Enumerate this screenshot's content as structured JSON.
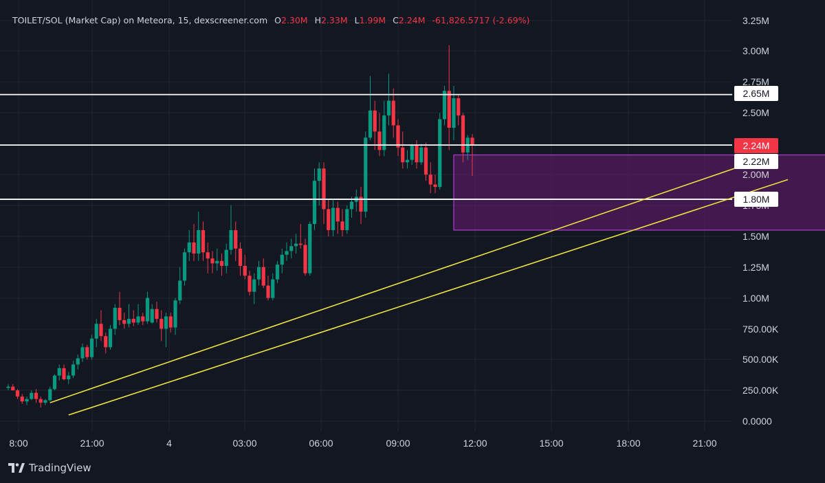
{
  "header": {
    "title": "TOILET/SOL (Market Cap) on Meteora, 15, dexscreener.com",
    "o_label": "O",
    "o_value": "2.30M",
    "h_label": "H",
    "h_value": "2.33M",
    "l_label": "L",
    "l_value": "1.99M",
    "c_label": "C",
    "c_value": "2.24M",
    "change": "-61,826.5717 (-2.69%)"
  },
  "footer": {
    "brand": "TradingView",
    "logo_icon": "tradingview-logo-icon"
  },
  "colors": {
    "background": "#131722",
    "up": "#089981",
    "down": "#f23645",
    "trendline": "#f0e442",
    "box_fill": "#6a1b6f",
    "box_stroke": "#b23bd6",
    "hline": "#ffffff",
    "axis_text": "#d1d4dc"
  },
  "chart_data": {
    "type": "candlestick",
    "x_tick_labels": [
      "8:00",
      "21:00",
      "4",
      "03:00",
      "06:00",
      "09:00",
      "12:00",
      "15:00",
      "18:00",
      "21:00"
    ],
    "y_tick_labels": [
      "3.25M",
      "3.00M",
      "2.75M",
      "2.50M",
      "2.00M",
      "1.75M",
      "1.50M",
      "1.25M",
      "1.00M",
      "750.00K",
      "500.00K",
      "250.00K",
      "0.0000"
    ],
    "ylim": [
      0,
      3.25
    ],
    "y_unit": "M",
    "price_labels": [
      {
        "label": "2.65M",
        "value": 2.65,
        "style": "white"
      },
      {
        "label": "2.24M",
        "value": 2.24,
        "style": "red"
      },
      {
        "label": "2.22M",
        "value": 2.22,
        "style": "white"
      },
      {
        "label": "1.80M",
        "value": 1.8,
        "style": "white"
      }
    ],
    "horizontal_lines": [
      2.65,
      2.24,
      1.8
    ],
    "rectangle": {
      "t_start": 96,
      "t_end": 177,
      "top": 2.16,
      "bottom": 1.55
    },
    "trendlines": [
      {
        "t1": 9,
        "v1": 0.15,
        "t2": 158,
        "v2": 2.07
      },
      {
        "t1": 13,
        "v1": 0.05,
        "t2": 168,
        "v2": 1.96
      }
    ],
    "candles_ohlc": [
      [
        0.27,
        0.3,
        0.25,
        0.28
      ],
      [
        0.28,
        0.3,
        0.25,
        0.25
      ],
      [
        0.25,
        0.26,
        0.18,
        0.2
      ],
      [
        0.2,
        0.22,
        0.14,
        0.16
      ],
      [
        0.16,
        0.2,
        0.13,
        0.18
      ],
      [
        0.18,
        0.25,
        0.17,
        0.23
      ],
      [
        0.23,
        0.26,
        0.15,
        0.18
      ],
      [
        0.18,
        0.2,
        0.11,
        0.15
      ],
      [
        0.15,
        0.18,
        0.13,
        0.17
      ],
      [
        0.17,
        0.28,
        0.16,
        0.26
      ],
      [
        0.26,
        0.38,
        0.25,
        0.37
      ],
      [
        0.37,
        0.46,
        0.33,
        0.43
      ],
      [
        0.43,
        0.46,
        0.33,
        0.34
      ],
      [
        0.34,
        0.4,
        0.3,
        0.37
      ],
      [
        0.37,
        0.49,
        0.35,
        0.46
      ],
      [
        0.46,
        0.54,
        0.42,
        0.51
      ],
      [
        0.51,
        0.63,
        0.48,
        0.6
      ],
      [
        0.6,
        0.62,
        0.5,
        0.52
      ],
      [
        0.52,
        0.7,
        0.5,
        0.67
      ],
      [
        0.67,
        0.83,
        0.6,
        0.79
      ],
      [
        0.79,
        0.9,
        0.65,
        0.69
      ],
      [
        0.69,
        0.72,
        0.55,
        0.6
      ],
      [
        0.6,
        0.78,
        0.58,
        0.75
      ],
      [
        0.75,
        0.95,
        0.7,
        0.92
      ],
      [
        0.92,
        1.05,
        0.78,
        0.82
      ],
      [
        0.82,
        0.88,
        0.75,
        0.79
      ],
      [
        0.79,
        0.95,
        0.76,
        0.83
      ],
      [
        0.83,
        0.9,
        0.77,
        0.8
      ],
      [
        0.8,
        0.95,
        0.78,
        0.85
      ],
      [
        0.85,
        0.88,
        0.78,
        0.81
      ],
      [
        0.81,
        1.05,
        0.79,
        1.0
      ],
      [
        0.8,
        0.95,
        0.79,
        0.91
      ],
      [
        0.91,
        0.97,
        0.8,
        0.83
      ],
      [
        0.83,
        0.9,
        0.65,
        0.75
      ],
      [
        0.75,
        0.88,
        0.6,
        0.85
      ],
      [
        0.85,
        0.88,
        0.72,
        0.76
      ],
      [
        0.76,
        1.0,
        0.7,
        0.98
      ],
      [
        0.98,
        1.25,
        0.95,
        1.14
      ],
      [
        1.14,
        1.4,
        1.1,
        1.37
      ],
      [
        1.37,
        1.55,
        1.3,
        1.45
      ],
      [
        1.45,
        1.6,
        1.3,
        1.36
      ],
      [
        1.36,
        1.7,
        1.3,
        1.55
      ],
      [
        1.55,
        1.62,
        1.3,
        1.37
      ],
      [
        1.37,
        1.45,
        1.2,
        1.32
      ],
      [
        1.32,
        1.38,
        1.2,
        1.28
      ],
      [
        1.28,
        1.4,
        1.22,
        1.3
      ],
      [
        1.3,
        1.36,
        1.18,
        1.26
      ],
      [
        1.26,
        1.44,
        1.2,
        1.39
      ],
      [
        1.39,
        1.75,
        1.35,
        1.55
      ],
      [
        1.55,
        1.62,
        1.3,
        1.4
      ],
      [
        1.4,
        1.45,
        1.18,
        1.26
      ],
      [
        1.26,
        1.35,
        1.15,
        1.18
      ],
      [
        1.18,
        1.22,
        1.02,
        1.05
      ],
      [
        1.05,
        1.2,
        0.95,
        1.15
      ],
      [
        1.15,
        1.3,
        1.1,
        1.25
      ],
      [
        1.25,
        1.32,
        1.08,
        1.1
      ],
      [
        1.1,
        1.18,
        0.98,
        1.0
      ],
      [
        1.0,
        1.2,
        0.98,
        1.15
      ],
      [
        1.15,
        1.3,
        1.12,
        1.27
      ],
      [
        1.27,
        1.4,
        1.2,
        1.35
      ],
      [
        1.35,
        1.45,
        1.3,
        1.38
      ],
      [
        1.38,
        1.48,
        1.32,
        1.42
      ],
      [
        1.42,
        1.52,
        1.36,
        1.44
      ],
      [
        1.44,
        1.6,
        1.4,
        1.43
      ],
      [
        1.43,
        1.48,
        1.18,
        1.2
      ],
      [
        1.2,
        1.62,
        1.18,
        1.6
      ],
      [
        1.6,
        2.05,
        1.55,
        1.95
      ],
      [
        1.95,
        2.1,
        1.75,
        2.05
      ],
      [
        2.05,
        2.1,
        1.6,
        1.72
      ],
      [
        1.72,
        1.8,
        1.5,
        1.55
      ],
      [
        1.55,
        1.8,
        1.5,
        1.73
      ],
      [
        1.73,
        1.78,
        1.52,
        1.62
      ],
      [
        1.62,
        1.72,
        1.5,
        1.55
      ],
      [
        1.55,
        1.75,
        1.52,
        1.72
      ],
      [
        1.72,
        1.82,
        1.65,
        1.78
      ],
      [
        1.78,
        1.88,
        1.7,
        1.82
      ],
      [
        1.82,
        1.9,
        1.6,
        1.7
      ],
      [
        1.7,
        2.35,
        1.65,
        2.3
      ],
      [
        2.3,
        2.8,
        2.28,
        2.52
      ],
      [
        2.52,
        2.6,
        2.2,
        2.35
      ],
      [
        2.35,
        2.5,
        2.15,
        2.2
      ],
      [
        2.2,
        2.6,
        2.15,
        2.48
      ],
      [
        2.48,
        2.82,
        2.4,
        2.6
      ],
      [
        2.6,
        2.7,
        2.3,
        2.4
      ],
      [
        2.4,
        2.45,
        2.15,
        2.22
      ],
      [
        2.22,
        2.35,
        2.05,
        2.1
      ],
      [
        2.1,
        2.2,
        2.05,
        2.12
      ],
      [
        2.12,
        2.25,
        2.08,
        2.24
      ],
      [
        2.24,
        2.28,
        2.05,
        2.1
      ],
      [
        2.1,
        2.25,
        2.08,
        2.22
      ],
      [
        2.22,
        2.26,
        1.95,
        2.0
      ],
      [
        2.0,
        2.1,
        1.85,
        1.92
      ],
      [
        1.92,
        2.0,
        1.85,
        1.9
      ],
      [
        1.9,
        2.5,
        1.88,
        2.45
      ],
      [
        2.45,
        2.72,
        2.4,
        2.68
      ],
      [
        2.68,
        3.05,
        2.2,
        2.38
      ],
      [
        2.38,
        2.72,
        2.28,
        2.62
      ],
      [
        2.62,
        2.65,
        2.4,
        2.48
      ],
      [
        2.48,
        2.5,
        2.1,
        2.18
      ],
      [
        2.18,
        2.32,
        2.12,
        2.3
      ],
      [
        2.3,
        2.33,
        1.99,
        2.24
      ]
    ]
  }
}
